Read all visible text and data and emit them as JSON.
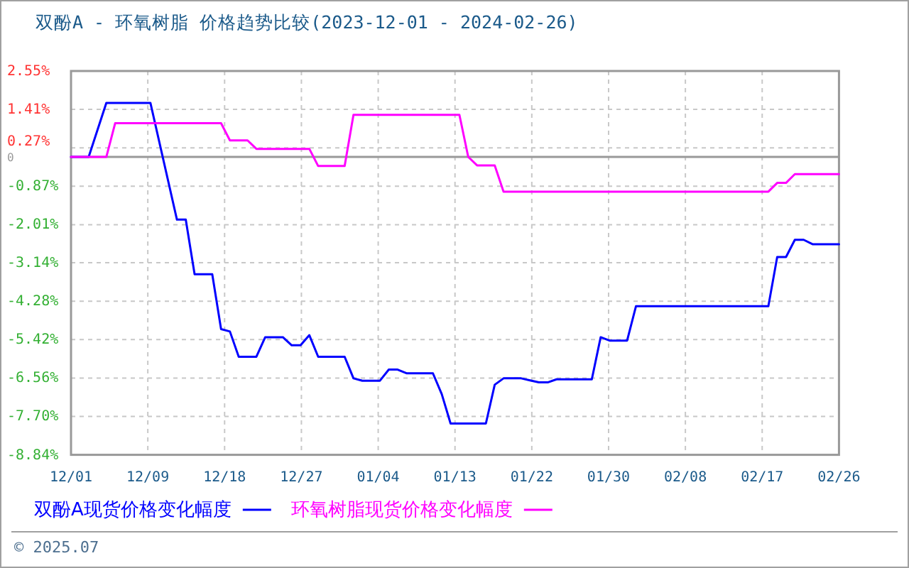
{
  "chart_data": {
    "type": "line",
    "title": "双酚A - 环氧树脂 价格趋势比较(2023-12-01 - 2024-02-26)",
    "series": [
      {
        "name": "双酚A现货价格变化幅度",
        "color": "#0000ff",
        "x": [
          "2023-12-01",
          "2023-12-03",
          "2023-12-05",
          "2023-12-10",
          "2023-12-13",
          "2023-12-14",
          "2023-12-15",
          "2023-12-17",
          "2023-12-18",
          "2023-12-19",
          "2023-12-20",
          "2023-12-22",
          "2023-12-23",
          "2023-12-25",
          "2023-12-26",
          "2023-12-27",
          "2023-12-28",
          "2023-12-29",
          "2024-01-01",
          "2024-01-02",
          "2024-01-03",
          "2024-01-05",
          "2024-01-06",
          "2024-01-07",
          "2024-01-08",
          "2024-01-11",
          "2024-01-12",
          "2024-01-13",
          "2024-01-17",
          "2024-01-18",
          "2024-01-19",
          "2024-01-21",
          "2024-01-22",
          "2024-01-23",
          "2024-01-24",
          "2024-01-25",
          "2024-01-29",
          "2024-01-30",
          "2024-01-31",
          "2024-02-02",
          "2024-02-03",
          "2024-02-18",
          "2024-02-19",
          "2024-02-20",
          "2024-02-21",
          "2024-02-22",
          "2024-02-23",
          "2024-02-26"
        ],
        "values": [
          0,
          0,
          1.6,
          1.6,
          -1.86,
          -1.86,
          -3.48,
          -3.48,
          -5.11,
          -5.18,
          -5.93,
          -5.93,
          -5.35,
          -5.35,
          -5.59,
          -5.59,
          -5.29,
          -5.93,
          -5.93,
          -6.57,
          -6.64,
          -6.64,
          -6.31,
          -6.31,
          -6.42,
          -6.42,
          -7.04,
          -7.91,
          -7.91,
          -6.76,
          -6.57,
          -6.57,
          -6.63,
          -6.69,
          -6.69,
          -6.6,
          -6.6,
          -5.35,
          -5.45,
          -5.45,
          -4.43,
          -4.43,
          -2.97,
          -2.97,
          -2.46,
          -2.46,
          -2.59,
          -2.59
        ]
      },
      {
        "name": "环氧树脂现货价格变化幅度",
        "color": "#ff00ff",
        "x": [
          "2023-12-01",
          "2023-12-05",
          "2023-12-06",
          "2023-12-18",
          "2023-12-19",
          "2023-12-21",
          "2023-12-22",
          "2023-12-28",
          "2023-12-29",
          "2024-01-01",
          "2024-01-02",
          "2024-01-14",
          "2024-01-15",
          "2024-01-16",
          "2024-01-18",
          "2024-01-19",
          "2024-02-18",
          "2024-02-19",
          "2024-02-20",
          "2024-02-21",
          "2024-02-26"
        ],
        "values": [
          0,
          0,
          1.0,
          1.0,
          0.49,
          0.49,
          0.24,
          0.24,
          -0.27,
          -0.27,
          1.25,
          1.25,
          0,
          -0.25,
          -0.25,
          -1.03,
          -1.03,
          -0.77,
          -0.77,
          -0.51,
          -0.51
        ]
      }
    ],
    "xlim": [
      "2023-12-01",
      "2024-02-26"
    ],
    "xticks": [
      {
        "value": "2023-12-01",
        "label": "12/01"
      },
      {
        "value": "2023-12-09T16:48",
        "label": "12/09"
      },
      {
        "value": "2023-12-18T09:36",
        "label": "12/18"
      },
      {
        "value": "2023-12-27T02:24",
        "label": "12/27"
      },
      {
        "value": "2024-01-04T19:12",
        "label": "01/04"
      },
      {
        "value": "2024-01-13T12:00",
        "label": "01/13"
      },
      {
        "value": "2024-01-22T04:48",
        "label": "01/22"
      },
      {
        "value": "2024-01-30T21:36",
        "label": "01/30"
      },
      {
        "value": "2024-02-08T14:24",
        "label": "02/08"
      },
      {
        "value": "2024-02-17T07:12",
        "label": "02/17"
      },
      {
        "value": "2024-02-26",
        "label": "02/26"
      }
    ],
    "ylim": [
      -8.84,
      2.55
    ],
    "yticks": [
      {
        "value": 2.55,
        "label": "2.55%"
      },
      {
        "value": 1.41,
        "label": "1.41%"
      },
      {
        "value": 0.27,
        "label": "0.27%"
      },
      {
        "value": 0,
        "label": "0"
      },
      {
        "value": -0.87,
        "label": "-0.87%"
      },
      {
        "value": -2.01,
        "label": "-2.01%"
      },
      {
        "value": -3.14,
        "label": "-3.14%"
      },
      {
        "value": -4.28,
        "label": "-4.28%"
      },
      {
        "value": -5.42,
        "label": "-5.42%"
      },
      {
        "value": -6.56,
        "label": "-6.56%"
      },
      {
        "value": -7.7,
        "label": "-7.70%"
      },
      {
        "value": -8.84,
        "label": "-8.84%"
      }
    ],
    "grid": true,
    "legend": "bottom",
    "ref_lines": [
      {
        "axis": "y",
        "value": 0,
        "color": "#999999"
      }
    ],
    "annotations": [
      "© 2025.07"
    ]
  }
}
